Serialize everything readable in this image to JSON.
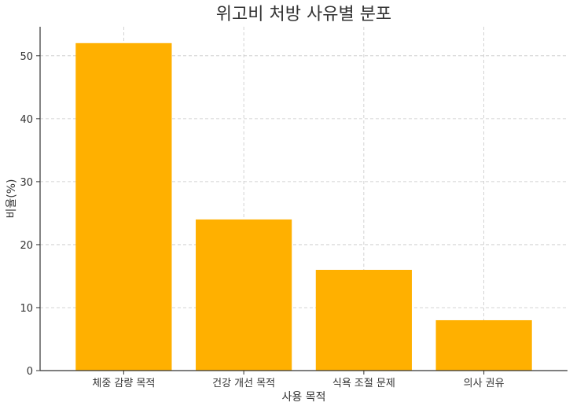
{
  "chart_data": {
    "type": "bar",
    "title": "위고비 처방 사유별 분포",
    "xlabel": "사용 목적",
    "ylabel": "비율(%)",
    "categories": [
      "체중 감량 목적",
      "건강 개선 목적",
      "식욕 조절 문제",
      "의사 권유"
    ],
    "values": [
      52,
      24,
      16,
      8
    ],
    "ylim": [
      0,
      54.6
    ],
    "yticks": [
      0,
      10,
      20,
      30,
      40,
      50
    ],
    "bar_color": "#FFB000",
    "grid": true
  }
}
